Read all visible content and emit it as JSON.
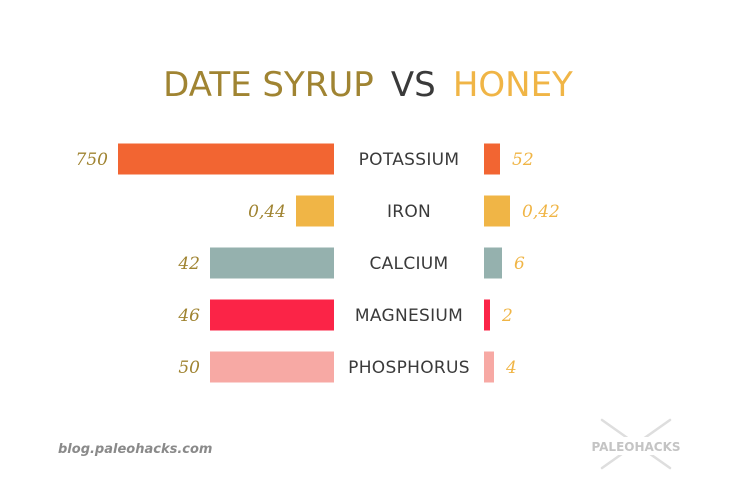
{
  "chart_data": {
    "type": "bar",
    "title_left": "DATE SYRUP",
    "title_mid": "VS",
    "title_right": "HONEY",
    "categories": [
      "POTASSIUM",
      "IRON",
      "CALCIUM",
      "MAGNESIUM",
      "PHOSPHORUS"
    ],
    "series": [
      {
        "name": "DATE SYRUP",
        "values": [
          750,
          0.44,
          42,
          46,
          50
        ],
        "labels": [
          "750",
          "0,44",
          "42",
          "46",
          "50"
        ]
      },
      {
        "name": "HONEY",
        "values": [
          52,
          0.42,
          6,
          2,
          4
        ],
        "labels": [
          "52",
          "0,42",
          "6",
          "2",
          "4"
        ]
      }
    ],
    "bar_colors": [
      "#f26532",
      "#f0b546",
      "#95b1ae",
      "#fb2447",
      "#f7a9a4"
    ]
  },
  "colors": {
    "date_syrup_title": "#a08432",
    "vs_title": "#3a3a3a",
    "honey_title": "#f0b546",
    "date_value_text": "#a08432",
    "honey_value_text": "#f0b546"
  },
  "footer": {
    "source": "blog.paleohacks.com",
    "logo": "PALEOHACKS"
  }
}
